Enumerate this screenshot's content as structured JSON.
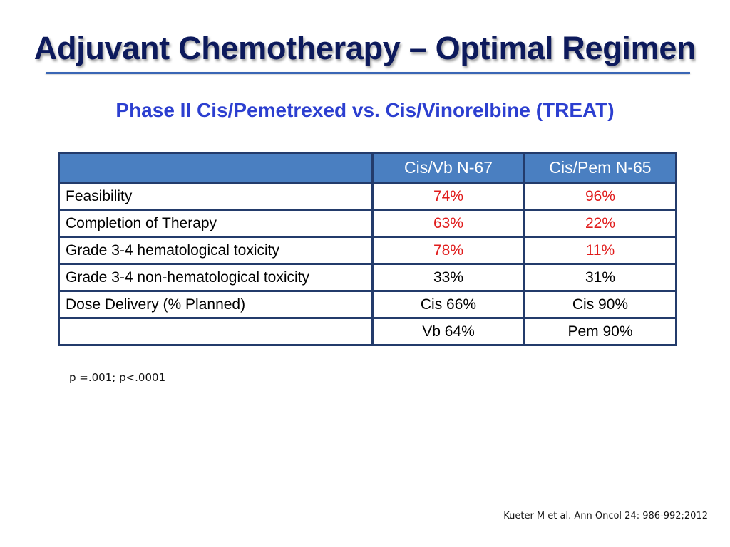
{
  "slide": {
    "title": "Adjuvant Chemotherapy – Optimal Regimen",
    "subtitle": "Phase II Cis/Pemetrexed vs. Cis/Vinorelbine (TREAT)"
  },
  "colors": {
    "title": "#0d1a5c",
    "subtitle": "#2c3fd0",
    "header_fill": "#4a7fc1",
    "border": "#233b6b",
    "highlight": "#e01b1b"
  },
  "table": {
    "headers": [
      "",
      "Cis/Vb N-67",
      "Cis/Pem N-65"
    ],
    "rows": [
      {
        "label": "Feasibility",
        "cis_vb": "74%",
        "cis_pem": "96%",
        "highlight": true
      },
      {
        "label": "Completion of Therapy",
        "cis_vb": "63%",
        "cis_pem": "22%",
        "highlight": true
      },
      {
        "label": "Grade 3-4 hematological toxicity",
        "cis_vb": "78%",
        "cis_pem": "11%",
        "highlight": true
      },
      {
        "label": "Grade 3-4 non-hematological toxicity",
        "cis_vb": "33%",
        "cis_pem": "31%",
        "highlight": false
      },
      {
        "label": "Dose Delivery (% Planned)",
        "cis_vb": "Cis 66%",
        "cis_pem": "Cis 90%",
        "highlight": false
      },
      {
        "label": "",
        "cis_vb": "Vb 64%",
        "cis_pem": "Pem 90%",
        "highlight": false
      }
    ]
  },
  "footnote": "p =.001; p<.0001",
  "citation": "Kueter M et al. Ann Oncol 24: 986-992;2012"
}
